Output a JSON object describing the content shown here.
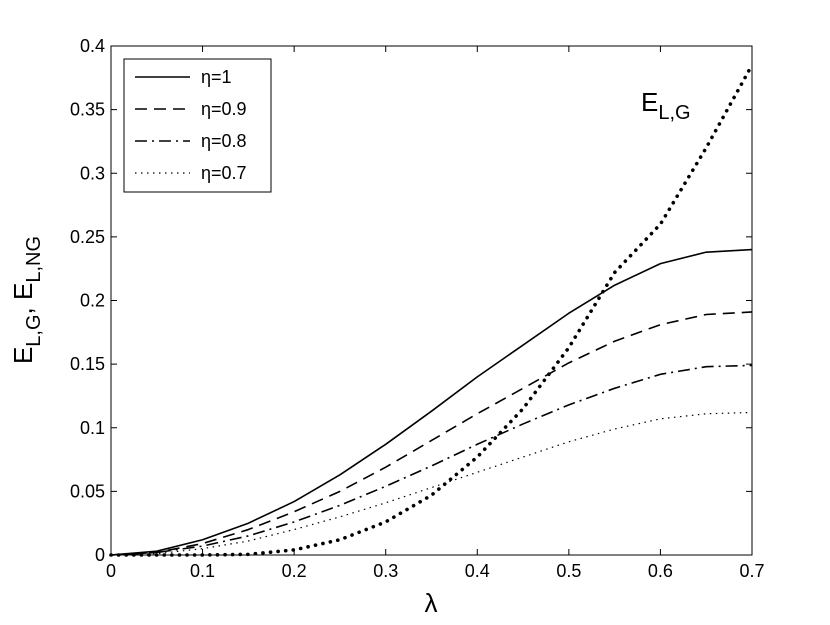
{
  "chart_data": {
    "type": "line",
    "xlabel": "λ",
    "ylabel": {
      "p1": "E",
      "s1": "L,G",
      "sep": ", ",
      "p2": "E",
      "s2": "L,NG"
    },
    "xlim": [
      0,
      0.7
    ],
    "ylim": [
      0,
      0.4
    ],
    "xticks": [
      "0",
      "0.1",
      "0.2",
      "0.3",
      "0.4",
      "0.5",
      "0.6",
      "0.7"
    ],
    "yticks": [
      "0",
      "0.05",
      "0.1",
      "0.15",
      "0.2",
      "0.25",
      "0.3",
      "0.35",
      "0.4"
    ],
    "grid": false,
    "legend_position": "top-left",
    "annotation": {
      "main": "E",
      "sub": "L,G"
    },
    "x": [
      0,
      0.05,
      0.1,
      0.15,
      0.2,
      0.25,
      0.3,
      0.35,
      0.4,
      0.45,
      0.5,
      0.55,
      0.6,
      0.65,
      0.7
    ],
    "series": [
      {
        "name": "η=1",
        "style": "solid",
        "values": [
          0,
          0.003,
          0.012,
          0.025,
          0.042,
          0.063,
          0.087,
          0.113,
          0.14,
          0.165,
          0.19,
          0.212,
          0.229,
          0.238,
          0.24
        ]
      },
      {
        "name": "η=0.9",
        "style": "dashed",
        "values": [
          0,
          0.002,
          0.009,
          0.02,
          0.034,
          0.05,
          0.069,
          0.09,
          0.111,
          0.131,
          0.151,
          0.168,
          0.181,
          0.189,
          0.191
        ]
      },
      {
        "name": "η=0.8",
        "style": "dashdot",
        "values": [
          0,
          0.002,
          0.007,
          0.015,
          0.026,
          0.039,
          0.054,
          0.07,
          0.087,
          0.103,
          0.118,
          0.131,
          0.142,
          0.148,
          0.149
        ]
      },
      {
        "name": "η=0.7",
        "style": "dotted",
        "values": [
          0,
          0.001,
          0.005,
          0.011,
          0.02,
          0.03,
          0.041,
          0.053,
          0.065,
          0.077,
          0.089,
          0.099,
          0.107,
          0.111,
          0.112
        ]
      },
      {
        "name": "",
        "style": "bolddotted",
        "values": [
          0,
          0,
          0,
          0.0005,
          0.004,
          0.012,
          0.026,
          0.047,
          0.077,
          0.115,
          0.163,
          0.222,
          0.26,
          0.32,
          0.385
        ]
      }
    ]
  }
}
